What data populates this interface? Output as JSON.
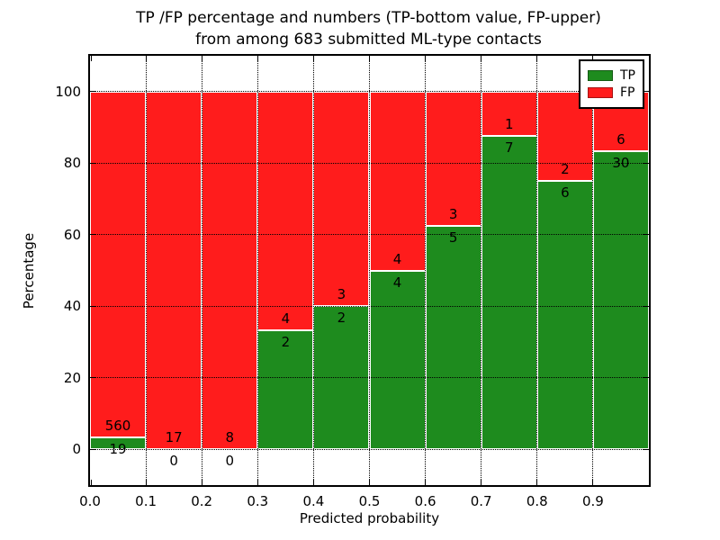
{
  "title": {
    "line1": "TP /FP percentage and numbers (TP-bottom value, FP-upper)",
    "line2": "from among 683 submitted ML-type contacts"
  },
  "chart_data": {
    "type": "bar",
    "stacked": true,
    "normalized_to_percent": true,
    "title": "TP /FP percentage and numbers (TP-bottom value, FP-upper) from among 683 submitted ML-type contacts",
    "xlabel": "Predicted probability",
    "ylabel": "Percentage",
    "bin_edges": [
      0.0,
      0.1,
      0.2,
      0.3,
      0.4,
      0.5,
      0.6,
      0.7,
      0.8,
      0.9,
      1.0
    ],
    "categories": [
      "0.0-0.1",
      "0.1-0.2",
      "0.2-0.3",
      "0.3-0.4",
      "0.4-0.5",
      "0.5-0.6",
      "0.6-0.7",
      "0.7-0.8",
      "0.8-0.9",
      "0.9-1.0"
    ],
    "series": [
      {
        "name": "TP",
        "color": "#1e8b1e",
        "values": [
          19,
          0,
          0,
          2,
          2,
          4,
          5,
          7,
          6,
          30
        ]
      },
      {
        "name": "FP",
        "color": "#ff1c1c",
        "values": [
          560,
          17,
          8,
          4,
          3,
          4,
          3,
          1,
          2,
          6
        ]
      }
    ],
    "tp_percent_of_bin": [
      3.28,
      0,
      0,
      33.33,
      40,
      50,
      62.5,
      87.5,
      75,
      83.33
    ],
    "total_contacts": 683,
    "xlim": [
      0,
      1
    ],
    "ylim": [
      -10,
      110
    ],
    "yticks": [
      0,
      20,
      40,
      60,
      80,
      100
    ],
    "ytick_labels": [
      "0",
      "20",
      "40",
      "60",
      "80",
      "100"
    ],
    "xticks": [
      0.0,
      0.1,
      0.2,
      0.3,
      0.4,
      0.5,
      0.6,
      0.7,
      0.8,
      0.9
    ],
    "xtick_labels": [
      "0.0",
      "0.1",
      "0.2",
      "0.3",
      "0.4",
      "0.5",
      "0.6",
      "0.7",
      "0.8",
      "0.9"
    ],
    "grid": "dotted",
    "legend_position": "upper right"
  }
}
